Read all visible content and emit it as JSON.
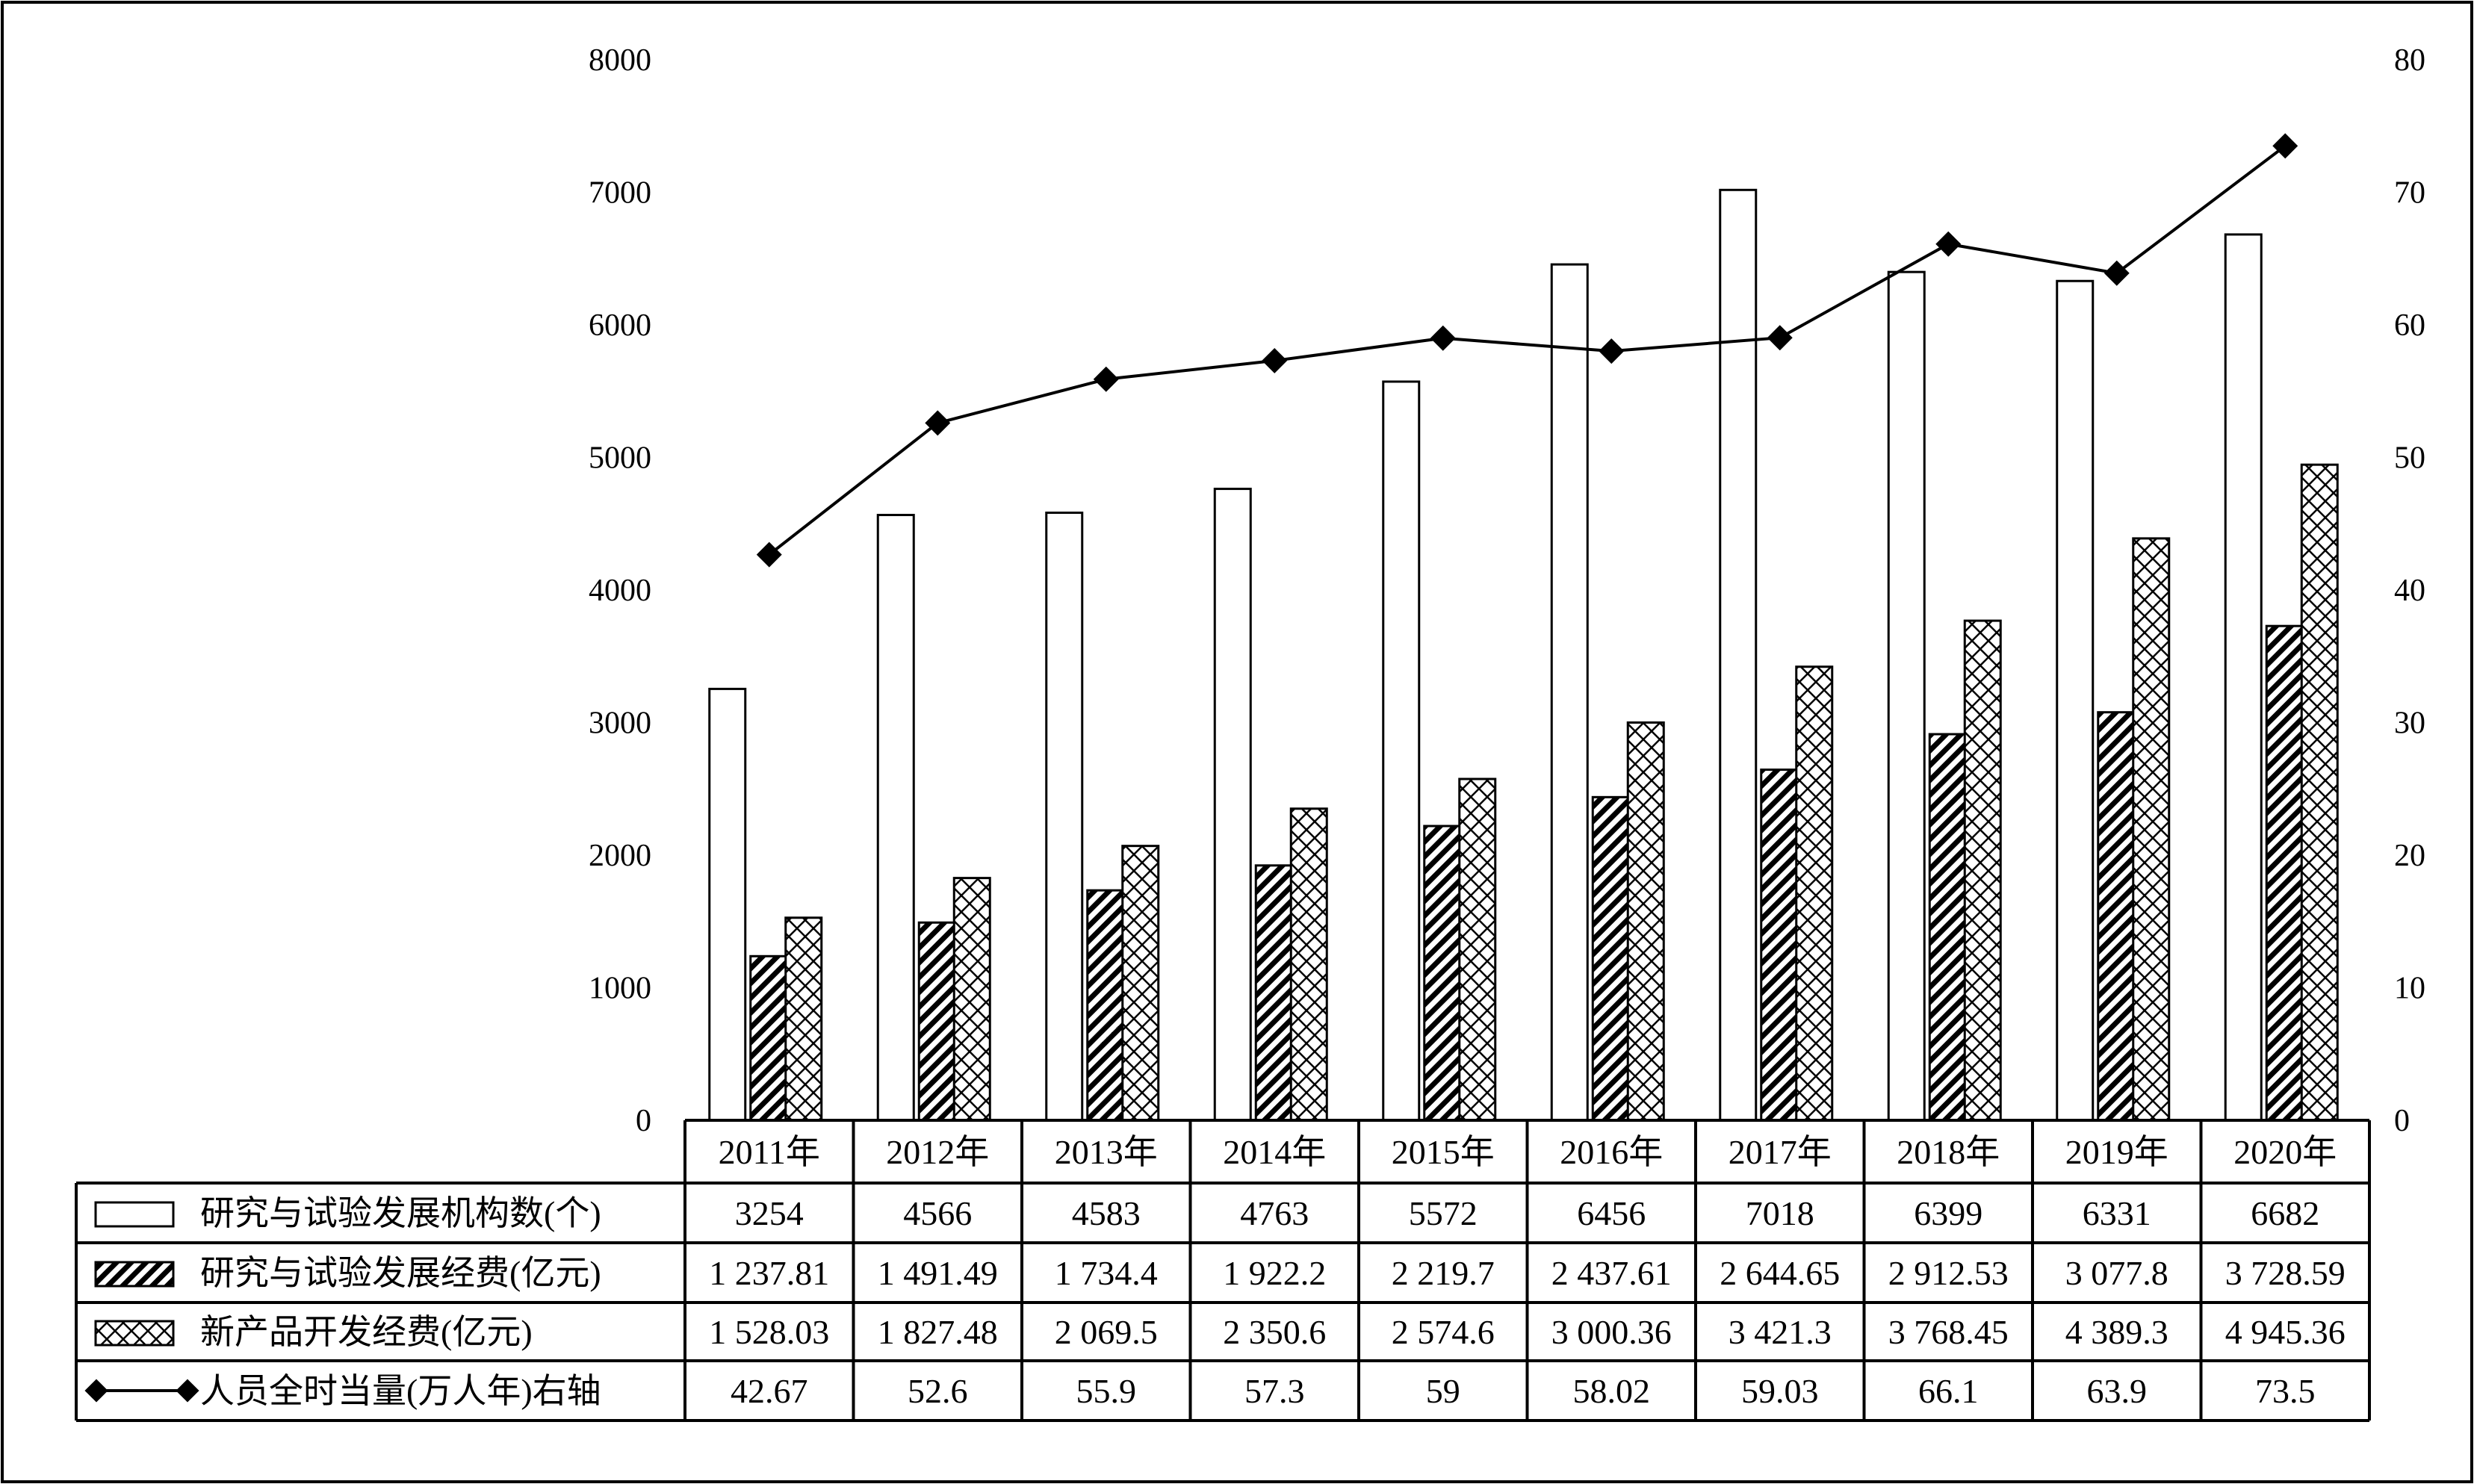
{
  "chart_data": {
    "type": "bar",
    "categories": [
      "2011年",
      "2012年",
      "2013年",
      "2014年",
      "2015年",
      "2016年",
      "2017年",
      "2018年",
      "2019年",
      "2020年"
    ],
    "series": [
      {
        "name": "研究与试验发展机构数(个)",
        "kind": "bar",
        "axis": "left",
        "pattern": "plain",
        "values": [
          3254,
          4566,
          4583,
          4763,
          5572,
          6456,
          7018,
          6399,
          6331,
          6682
        ],
        "labels": [
          "3254",
          "4566",
          "4583",
          "4763",
          "5572",
          "6456",
          "7018",
          "6399",
          "6331",
          "6682"
        ]
      },
      {
        "name": "研究与试验发展经费(亿元)",
        "kind": "bar",
        "axis": "left",
        "pattern": "diagonal-dense",
        "values": [
          1237.81,
          1491.49,
          1734.4,
          1922.2,
          2219.7,
          2437.61,
          2644.65,
          2912.53,
          3077.8,
          3728.59
        ],
        "labels": [
          "1 237.81",
          "1 491.49",
          "1 734.4",
          "1 922.2",
          "2 219.7",
          "2 437.61",
          "2 644.65",
          "2 912.53",
          "3 077.8",
          "3 728.59"
        ]
      },
      {
        "name": "新产品开发经费(亿元)",
        "kind": "bar",
        "axis": "left",
        "pattern": "zigzag",
        "values": [
          1528.03,
          1827.48,
          2069.5,
          2350.6,
          2574.6,
          3000.36,
          3421.3,
          3768.45,
          4389.3,
          4945.36
        ],
        "labels": [
          "1 528.03",
          "1 827.48",
          "2 069.5",
          "2 350.6",
          "2 574.6",
          "3 000.36",
          "3 421.3",
          "3 768.45",
          "4 389.3",
          "4 945.36"
        ]
      },
      {
        "name": "人员全时当量(万人年)右轴",
        "kind": "line",
        "axis": "right",
        "marker": "diamond",
        "values": [
          42.67,
          52.6,
          55.9,
          57.3,
          59,
          58.02,
          59.03,
          66.1,
          63.9,
          73.5
        ],
        "labels": [
          "42.67",
          "52.6",
          "55.9",
          "57.3",
          "59",
          "58.02",
          "59.03",
          "66.1",
          "63.9",
          "73.5"
        ]
      }
    ],
    "y_left": {
      "ylim": [
        0,
        8000
      ],
      "ticks": [
        "0",
        "1000",
        "2000",
        "3000",
        "4000",
        "5000",
        "6000",
        "7000",
        "8000"
      ]
    },
    "y_right": {
      "ylim": [
        0,
        80
      ],
      "ticks": [
        "0",
        "10",
        "20",
        "30",
        "40",
        "50",
        "60",
        "70",
        "80"
      ]
    },
    "grid": false,
    "legend": "data-table-bottom"
  },
  "colors": {
    "ink": "#000000",
    "bar_fill": "#ffffff",
    "background": "#ffffff"
  }
}
